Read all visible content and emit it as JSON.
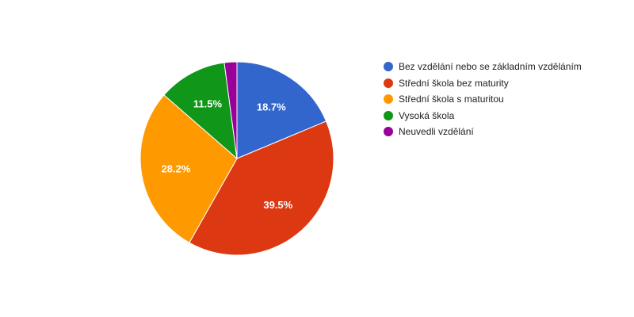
{
  "chart_data": {
    "type": "pie",
    "title": "",
    "slices": [
      {
        "label": "Bez vzdělání nebo se základním vzděláním",
        "value": 18.7,
        "display": "18.7%",
        "color": "#3366cc",
        "show_label": true
      },
      {
        "label": "Střední škola bez maturity",
        "value": 39.5,
        "display": "39.5%",
        "color": "#dc3912",
        "show_label": true
      },
      {
        "label": "Střední škola s maturitou",
        "value": 28.2,
        "display": "28.2%",
        "color": "#ff9900",
        "show_label": true
      },
      {
        "label": "Vysoká škola",
        "value": 11.5,
        "display": "11.5%",
        "color": "#109618",
        "show_label": true
      },
      {
        "label": "Neuvedli vzdělání",
        "value": 2.1,
        "display": "",
        "color": "#990099",
        "show_label": false
      }
    ],
    "legend_position": "right"
  }
}
